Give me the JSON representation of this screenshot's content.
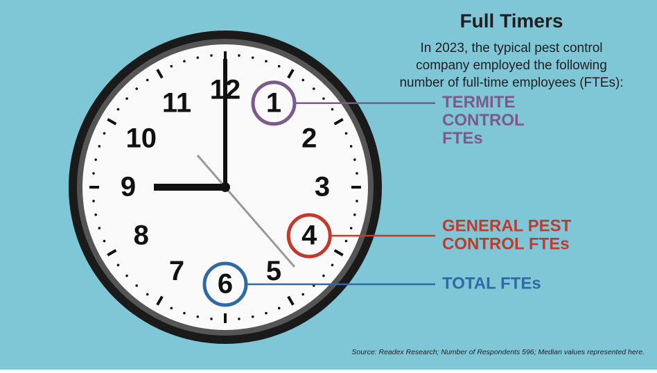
{
  "header": {
    "title": "Full Timers",
    "subtitle_lines": [
      "In 2023, the typical pest control",
      "company employed the following",
      "number of full-time employees (FTEs):"
    ]
  },
  "clock": {
    "numerals": [
      12,
      1,
      2,
      3,
      4,
      5,
      6,
      7,
      8,
      9,
      10,
      11
    ]
  },
  "callouts": [
    {
      "lines": [
        "TERMITE",
        "CONTROL",
        "FTEs"
      ],
      "value": 1,
      "color": "#7b5a8c"
    },
    {
      "lines": [
        "GENERAL PEST",
        "CONTROL FTEs"
      ],
      "value": 4,
      "color": "#c23a2c"
    },
    {
      "lines": [
        "TOTAL FTEs"
      ],
      "value": 6,
      "color": "#2f6aa6"
    }
  ],
  "source": "Source: Readex Research; Number of Respondents 596; Median values represented here."
}
